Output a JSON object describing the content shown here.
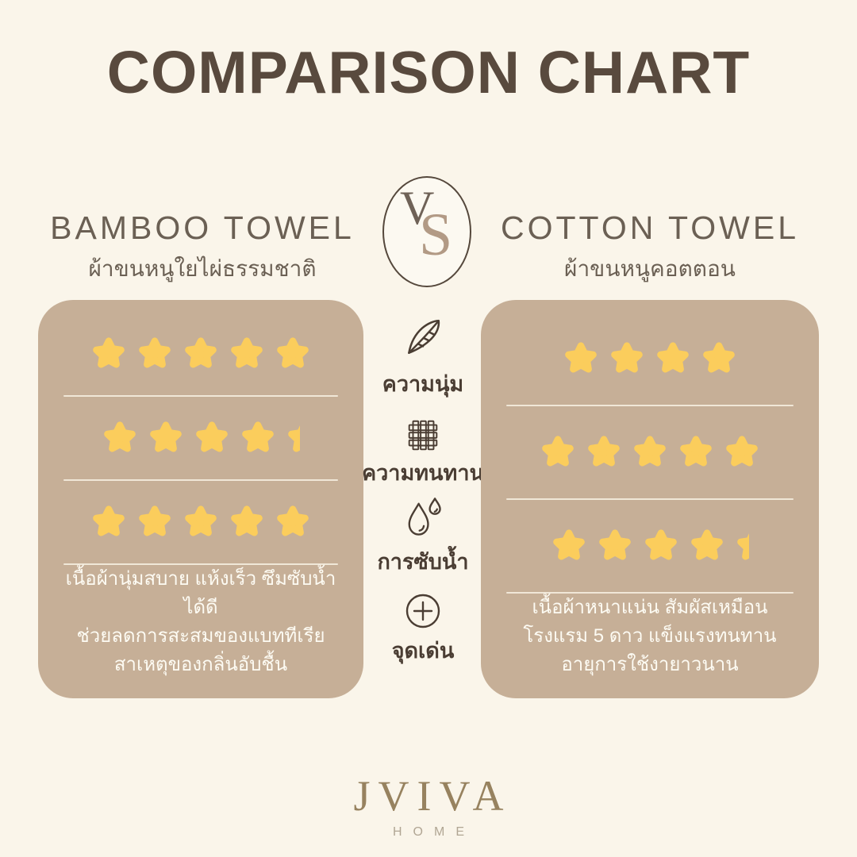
{
  "title": "COMPARISON CHART",
  "vs_badge": {
    "letter_v": "V",
    "letter_s": "S"
  },
  "products": {
    "left": {
      "name": "BAMBOO TOWEL",
      "subtitle_th": "ผ้าขนหนูใยไผ่ธรรมชาติ",
      "highlight_lines": [
        "เนื้อผ้านุ่มสบาย แห้งเร็ว ซึมซับน้ำได้ดี",
        "ช่วยลดการสะสมของแบททีเรีย",
        "สาเหตุของกลิ่นอับชื้น"
      ]
    },
    "right": {
      "name": "COTTON TOWEL",
      "subtitle_th": "ผ้าขนหนูคอตตอน",
      "highlight_lines": [
        "เนื้อผ้าหนาแน่น สัมผัสเหมือน",
        "โรงแรม 5 ดาว แข็งแรงทนทาน",
        "อายุการใช้งายาวนาน"
      ]
    }
  },
  "criteria": [
    {
      "id": "softness",
      "label_th": "ความนุ่ม",
      "icon": "feather-icon"
    },
    {
      "id": "durability",
      "label_th": "ความทนทาน",
      "icon": "fabric-weave-icon"
    },
    {
      "id": "absorbency",
      "label_th": "การซับน้ำ",
      "icon": "water-drops-icon"
    },
    {
      "id": "highlight",
      "label_th": "จุดเด่น",
      "icon": "plus-circle-icon"
    }
  ],
  "chart_data": {
    "type": "table",
    "title": "COMPARISON CHART",
    "categories": [
      "ความนุ่ม (softness)",
      "ความทนทาน (durability)",
      "การซับน้ำ (water absorption)"
    ],
    "series": [
      {
        "name": "BAMBOO TOWEL",
        "values": [
          5,
          4.4,
          5
        ]
      },
      {
        "name": "COTTON TOWEL",
        "values": [
          4,
          5,
          4.4
        ]
      }
    ],
    "rating_scale_max": 5,
    "legend_position": "top",
    "grid": false
  },
  "brand": {
    "name": "JVIVA",
    "tagline": "HOME"
  },
  "colors": {
    "background": "#FAF5EA",
    "panel": "#C6AF97",
    "star": "#FBCD5C",
    "title_text": "#594A3E",
    "header_text": "#6B6054",
    "icon_label": "#4A3D33",
    "panel_text": "#FDFBF3",
    "divider": "#F0E7D7",
    "vs_border": "#55483C",
    "vs_v": "#6F6257",
    "vs_s": "#B29A85",
    "logo": "#97825F",
    "logo_sub": "#B1A694"
  }
}
